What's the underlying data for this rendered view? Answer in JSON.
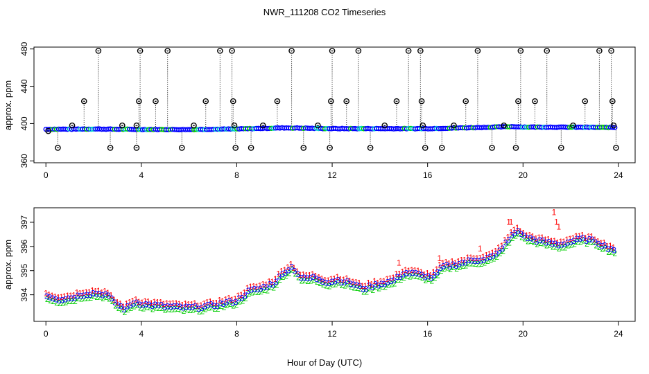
{
  "page_title": "NWR_111208  CO2 Timeseries",
  "xlabel": "Hour of Day (UTC)",
  "colors": {
    "series1": "#ff0000",
    "series2": "#00cc00",
    "series3": "#0000ff",
    "outlier": "#000000",
    "highlight": "#00cccc"
  },
  "chart_data": [
    {
      "type": "scatter",
      "title": "",
      "ylabel": "approx. ppm",
      "xlim": [
        -0.5,
        24.7
      ],
      "ylim": [
        358,
        482
      ],
      "xticks": [
        0,
        4,
        8,
        12,
        16,
        20,
        24
      ],
      "yticks": [
        360,
        400,
        440,
        480
      ],
      "baseline": [
        [
          0,
          393.9
        ],
        [
          2,
          394.2
        ],
        [
          4,
          393.7
        ],
        [
          6,
          393.6
        ],
        [
          8,
          394.2
        ],
        [
          10,
          395.4
        ],
        [
          12,
          394.6
        ],
        [
          14,
          394.6
        ],
        [
          16,
          394.6
        ],
        [
          18,
          395.7
        ],
        [
          19.6,
          396.8
        ],
        [
          20,
          396.3
        ],
        [
          22,
          396.1
        ],
        [
          24,
          395.8
        ]
      ],
      "outliers": [
        [
          0.1,
          392
        ],
        [
          0.5,
          374
        ],
        [
          1.1,
          398
        ],
        [
          1.6,
          424
        ],
        [
          2.2,
          478
        ],
        [
          2.7,
          374
        ],
        [
          3.2,
          398
        ],
        [
          3.8,
          374
        ],
        [
          3.8,
          398
        ],
        [
          3.9,
          424
        ],
        [
          3.95,
          478
        ],
        [
          4.6,
          424
        ],
        [
          5.1,
          478
        ],
        [
          5.7,
          374
        ],
        [
          6.2,
          398
        ],
        [
          6.7,
          424
        ],
        [
          7.3,
          478
        ],
        [
          7.8,
          478
        ],
        [
          7.85,
          424
        ],
        [
          7.9,
          398
        ],
        [
          7.95,
          374
        ],
        [
          8.6,
          374
        ],
        [
          9.1,
          398
        ],
        [
          9.7,
          424
        ],
        [
          10.3,
          478
        ],
        [
          10.8,
          374
        ],
        [
          11.4,
          398
        ],
        [
          11.9,
          374
        ],
        [
          11.95,
          424
        ],
        [
          12,
          478
        ],
        [
          12.6,
          424
        ],
        [
          13.1,
          478
        ],
        [
          13.6,
          374
        ],
        [
          14.2,
          398
        ],
        [
          14.7,
          424
        ],
        [
          15.2,
          478
        ],
        [
          15.7,
          478
        ],
        [
          15.75,
          424
        ],
        [
          15.8,
          398
        ],
        [
          15.9,
          374
        ],
        [
          16.6,
          374
        ],
        [
          17.1,
          398
        ],
        [
          17.6,
          424
        ],
        [
          18.1,
          478
        ],
        [
          18.7,
          374
        ],
        [
          19.2,
          398
        ],
        [
          19.7,
          374
        ],
        [
          19.8,
          424
        ],
        [
          19.9,
          478
        ],
        [
          20.5,
          424
        ],
        [
          21,
          478
        ],
        [
          21.6,
          374
        ],
        [
          22.1,
          398
        ],
        [
          22.6,
          424
        ],
        [
          23.2,
          478
        ],
        [
          23.7,
          478
        ],
        [
          23.75,
          424
        ],
        [
          23.8,
          398
        ],
        [
          23.9,
          374
        ]
      ]
    },
    {
      "type": "scatter",
      "title": "",
      "ylabel": "approx. ppm",
      "xlim": [
        -0.5,
        24.7
      ],
      "ylim": [
        392.9,
        397.6
      ],
      "xticks": [
        0,
        4,
        8,
        12,
        16,
        20,
        24
      ],
      "yticks": [
        394,
        395,
        396,
        397
      ],
      "marker_labels": [
        "1",
        "2",
        "3"
      ],
      "trend": [
        [
          0,
          393.9
        ],
        [
          0.5,
          393.75
        ],
        [
          1,
          393.8
        ],
        [
          1.5,
          393.95
        ],
        [
          2,
          394.0
        ],
        [
          2.5,
          393.95
        ],
        [
          3,
          393.5
        ],
        [
          3.3,
          393.35
        ],
        [
          3.7,
          393.65
        ],
        [
          4,
          393.55
        ],
        [
          5,
          393.45
        ],
        [
          6,
          393.4
        ],
        [
          6.7,
          393.45
        ],
        [
          7.5,
          393.6
        ],
        [
          8,
          393.7
        ],
        [
          8.5,
          394.1
        ],
        [
          9,
          394.2
        ],
        [
          9.5,
          394.4
        ],
        [
          10,
          394.9
        ],
        [
          10.3,
          395.1
        ],
        [
          10.7,
          394.6
        ],
        [
          11.2,
          394.65
        ],
        [
          11.8,
          394.45
        ],
        [
          12.2,
          394.55
        ],
        [
          12.8,
          394.4
        ],
        [
          13.3,
          394.2
        ],
        [
          13.8,
          394.35
        ],
        [
          14.5,
          394.5
        ],
        [
          15,
          394.85
        ],
        [
          15.5,
          394.8
        ],
        [
          15.9,
          394.7
        ],
        [
          16.2,
          394.65
        ],
        [
          16.6,
          395.1
        ],
        [
          17.2,
          395.2
        ],
        [
          17.8,
          395.35
        ],
        [
          18.3,
          395.4
        ],
        [
          18.8,
          395.55
        ],
        [
          19.2,
          396.0
        ],
        [
          19.6,
          396.5
        ],
        [
          19.8,
          396.6
        ],
        [
          20,
          396.35
        ],
        [
          20.5,
          396.2
        ],
        [
          21,
          396.1
        ],
        [
          21.5,
          396.0
        ],
        [
          22,
          396.15
        ],
        [
          22.5,
          396.25
        ],
        [
          23,
          396.15
        ],
        [
          23.5,
          395.9
        ],
        [
          23.8,
          395.8
        ]
      ],
      "spikes": [
        [
          21.3,
          397.3
        ],
        [
          21.4,
          396.9
        ],
        [
          21.5,
          396.7
        ],
        [
          19.5,
          396.9
        ],
        [
          19.4,
          396.9
        ],
        [
          16.5,
          395.4
        ],
        [
          14.8,
          395.2
        ],
        [
          18.2,
          395.8
        ]
      ]
    }
  ]
}
